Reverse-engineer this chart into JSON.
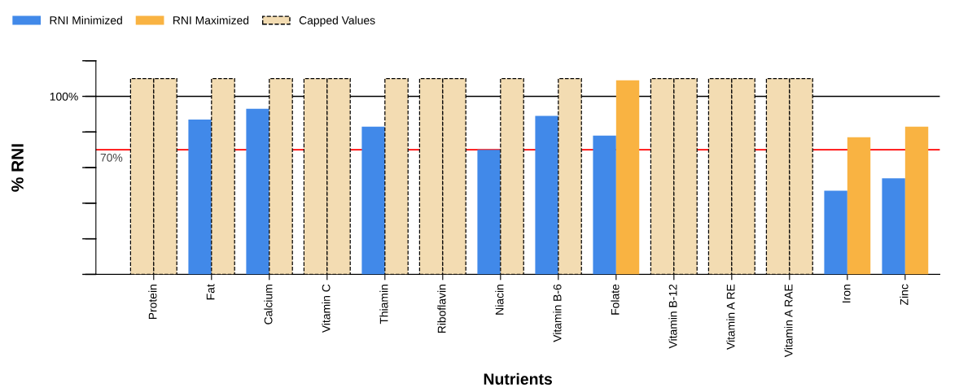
{
  "chart_data": {
    "type": "bar",
    "xlabel": "Nutrients",
    "ylabel": "% RNI",
    "categories": [
      "Protein",
      "Fat",
      "Calcium",
      "Vitamin C",
      "Thiamin",
      "Riboflavin",
      "Niacin",
      "Vitamin B-6",
      "Folate",
      "Vitamin B-12",
      "Vitamin A RE",
      "Vitamin A RAE",
      "Iron",
      "Zinc"
    ],
    "series": [
      {
        "name": "RNI Minimized",
        "color": "#4189e9",
        "values": [
          110,
          87,
          93,
          110,
          83,
          110,
          70,
          89,
          78,
          110,
          110,
          110,
          47,
          54
        ],
        "colors": [
          "#f3dcb2",
          "#4189e9",
          "#4189e9",
          "#f3dcb2",
          "#4189e9",
          "#f3dcb2",
          "#4189e9",
          "#4189e9",
          "#4189e9",
          "#f3dcb2",
          "#f3dcb2",
          "#f3dcb2",
          "#4189e9",
          "#4189e9"
        ]
      },
      {
        "name": "RNI Maximized",
        "color": "#f9b342",
        "values": [
          110,
          110,
          110,
          110,
          110,
          110,
          110,
          110,
          109,
          110,
          110,
          110,
          77,
          83
        ],
        "colors": [
          "#f3dcb2",
          "#f3dcb2",
          "#f3dcb2",
          "#f3dcb2",
          "#f3dcb2",
          "#f3dcb2",
          "#f3dcb2",
          "#f3dcb2",
          "#f9b342",
          "#f3dcb2",
          "#f3dcb2",
          "#f3dcb2",
          "#f9b342",
          "#f9b342"
        ]
      },
      {
        "name": "Capped Values",
        "color": "#f3dcb2",
        "values": [
          null,
          null,
          null,
          null,
          null,
          null,
          null,
          null,
          null,
          null,
          null,
          null,
          null,
          null
        ]
      }
    ],
    "ylim": [
      0,
      120
    ],
    "yticks": [
      {
        "value": 0,
        "label": null
      },
      {
        "value": 20,
        "label": null
      },
      {
        "value": 40,
        "label": null
      },
      {
        "value": 60,
        "label": null
      },
      {
        "value": 80,
        "label": null
      },
      {
        "value": 100,
        "label": "100%"
      },
      {
        "value": 120,
        "label": null
      }
    ],
    "ref_lines": [
      {
        "axis": "y",
        "value": 100,
        "label": null,
        "color": "#000000"
      },
      {
        "axis": "y",
        "value": 70,
        "label": "70%",
        "color": "#ff0000"
      }
    ],
    "legend": "top left",
    "grid": false
  }
}
